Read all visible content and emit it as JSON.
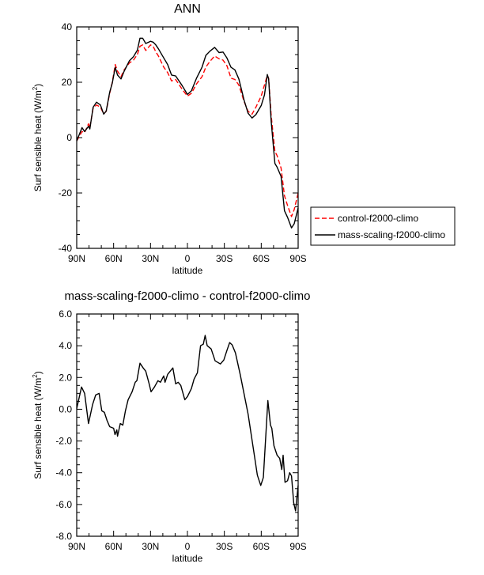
{
  "chart_data": [
    {
      "type": "line",
      "title": "ANN",
      "xlabel": "latitude",
      "ylabel": "Surf sensible heat (W/m",
      "ylabel_sup": "2",
      "ylabel_end": ")",
      "xlim": [
        90,
        -90
      ],
      "ylim": [
        -40,
        40
      ],
      "xticks": [
        90,
        60,
        30,
        0,
        -30,
        -60,
        -90
      ],
      "xtick_labels": [
        "90N",
        "60N",
        "30N",
        "0",
        "30S",
        "60S",
        "90S"
      ],
      "yticks": [
        -40,
        -20,
        0,
        20,
        40
      ],
      "ytick_labels": [
        "-40",
        "-20",
        "0",
        "20",
        "40"
      ],
      "legend": "right",
      "grid": false,
      "series": [
        {
          "name": "control-f2000-climo",
          "color": "#ff0000",
          "dash": "dashed",
          "x": [
            90,
            85.7,
            83.6,
            80.4,
            79.3,
            76.7,
            73.9,
            70.7,
            68.1,
            66,
            63.2,
            61.1,
            58.7,
            56.8,
            54,
            51.4,
            47.1,
            43.9,
            40.7,
            38.6,
            36.4,
            33.9,
            30,
            27.9,
            25.7,
            23.6,
            19.3,
            16.1,
            12.9,
            9.6,
            4.3,
            0,
            -3.2,
            -7.5,
            -11.8,
            -15,
            -18.2,
            -22.1,
            -25.7,
            -28.9,
            -32.1,
            -35.4,
            -38.6,
            -41.8,
            -46.1,
            -49.3,
            -52.5,
            -55.7,
            -60,
            -62.6,
            -64.9,
            -66,
            -68.1,
            -71.1,
            -72.9,
            -76.1,
            -78.9,
            -81.4,
            -84.6,
            -86.8,
            -90
          ],
          "y": [
            -1.2,
            2.2,
            1.8,
            5,
            3.6,
            10.5,
            11.8,
            11,
            8.6,
            9.5,
            16,
            20,
            26.4,
            24,
            22,
            24.5,
            27,
            28,
            30,
            33,
            33.5,
            31.5,
            33.5,
            33,
            31,
            29.5,
            25.5,
            23.5,
            20.5,
            21,
            17.5,
            15,
            16,
            19.5,
            22,
            25.5,
            27.5,
            29.5,
            28.5,
            28,
            26,
            21.5,
            21,
            19,
            13,
            9.5,
            8.5,
            11,
            15,
            19,
            22.5,
            21.5,
            8,
            -5,
            -6.5,
            -11,
            -21,
            -24.5,
            -28.5,
            -26,
            -20
          ]
        },
        {
          "name": "mass-scaling-f2000-climo",
          "color": "#000000",
          "dash": "solid",
          "x": [
            90,
            85.7,
            83.6,
            80.4,
            79.3,
            76.7,
            73.9,
            70.7,
            68.1,
            66,
            63.2,
            61.1,
            58.7,
            56.8,
            54,
            51.4,
            47.1,
            43.9,
            40.7,
            38.6,
            36.4,
            33.9,
            30,
            27.9,
            25.7,
            23.6,
            19.3,
            16.1,
            12.9,
            9.6,
            4.3,
            0,
            -3.2,
            -7.5,
            -11.8,
            -15,
            -18.2,
            -22.1,
            -25.7,
            -28.9,
            -32.1,
            -35.4,
            -38.6,
            -41.8,
            -46.1,
            -49.3,
            -52.5,
            -55.7,
            -60,
            -62.6,
            -64.9,
            -66,
            -68.1,
            -71.1,
            -72.9,
            -76.1,
            -78.9,
            -81.4,
            -84.6,
            -86.8,
            -90
          ],
          "y": [
            -1.2,
            3.6,
            2.2,
            4.1,
            3.1,
            10.9,
            12.8,
            11.8,
            8.5,
            9.6,
            16.4,
            19.7,
            25.4,
            22.6,
            21.2,
            24,
            27.8,
            29.2,
            31.6,
            35.9,
            35.9,
            34,
            34.8,
            34.5,
            33.5,
            32.1,
            28.8,
            26.4,
            22.6,
            22.3,
            18.8,
            15.6,
            16.9,
            21.6,
            25.4,
            29.7,
            31.2,
            32.6,
            30.7,
            30.9,
            28.8,
            25.4,
            24.5,
            21.2,
            13.5,
            8.8,
            7.1,
            8.3,
            11.6,
            15.4,
            22.8,
            21.1,
            5.9,
            -9.3,
            -10.7,
            -14,
            -26.4,
            -28.8,
            -32.6,
            -31.1,
            -25.4
          ]
        }
      ]
    },
    {
      "type": "line",
      "title": "mass-scaling-f2000-climo - control-f2000-climo",
      "xlabel": "latitude",
      "ylabel": "Surf sensible heat (W/m",
      "ylabel_sup": "2",
      "ylabel_end": ")",
      "xlim": [
        90,
        -90
      ],
      "ylim": [
        -8,
        6
      ],
      "xticks": [
        90,
        60,
        30,
        0,
        -30,
        -60,
        -90
      ],
      "xtick_labels": [
        "90N",
        "60N",
        "30N",
        "0",
        "30S",
        "60S",
        "90S"
      ],
      "yticks": [
        -8,
        -6,
        -4,
        -2,
        0,
        2,
        4,
        6
      ],
      "ytick_labels": [
        "-8.0",
        "-6.0",
        "-4.0",
        "-2.0",
        "0.0",
        "2.0",
        "4.0",
        "6.0"
      ],
      "grid": false,
      "series": [
        {
          "color": "#000000",
          "dash": "solid",
          "x": [
            90,
            86.1,
            83.6,
            80.4,
            77.1,
            74.6,
            71.8,
            69.6,
            67.5,
            65.4,
            63.2,
            60,
            58.9,
            57.4,
            56.8,
            54.6,
            52.5,
            50.4,
            48.2,
            45,
            42.4,
            41.1,
            38.6,
            36,
            33.9,
            31.1,
            29.6,
            26.8,
            24,
            21.9,
            19.3,
            18.2,
            16.1,
            11.8,
            9.6,
            7.5,
            5.4,
            2.1,
            0,
            -3.2,
            -5.4,
            -8.1,
            -10.7,
            -12.9,
            -14.4,
            -16.1,
            -19.3,
            -22.5,
            -26.8,
            -29.6,
            -32.1,
            -34.3,
            -36.4,
            -39,
            -42.9,
            -49.3,
            -53.6,
            -56.8,
            -59.6,
            -61.7,
            -65.4,
            -67.5,
            -68.6,
            -70.3,
            -72.9,
            -75,
            -76.7,
            -77.8,
            -79.3,
            -81.4,
            -83.1,
            -84.6,
            -86.4,
            -87.9,
            -90
          ],
          "y": [
            0.04,
            1.4,
            1.0,
            -0.9,
            0.3,
            0.9,
            1.0,
            -0.1,
            -0.2,
            -0.7,
            -1.1,
            -1.2,
            -1.6,
            -1.3,
            -1.7,
            -0.9,
            -1.0,
            -0.1,
            0.6,
            1.1,
            1.7,
            1.8,
            2.9,
            2.6,
            2.4,
            1.6,
            1.1,
            1.4,
            1.8,
            1.7,
            2.1,
            1.7,
            2.2,
            2.6,
            1.6,
            1.7,
            1.5,
            0.6,
            0.8,
            1.3,
            1.9,
            2.3,
            4.0,
            4.1,
            4.65,
            4.0,
            3.8,
            3.05,
            2.85,
            3.1,
            3.7,
            4.2,
            4.05,
            3.55,
            2.2,
            -0.3,
            -2.5,
            -4.15,
            -4.8,
            -4.3,
            0.55,
            -1.0,
            -1.2,
            -2.3,
            -2.9,
            -3.1,
            -3.8,
            -2.9,
            -4.6,
            -4.5,
            -4.0,
            -4.2,
            -5.9,
            -6.4,
            -4.8
          ]
        }
      ]
    }
  ]
}
